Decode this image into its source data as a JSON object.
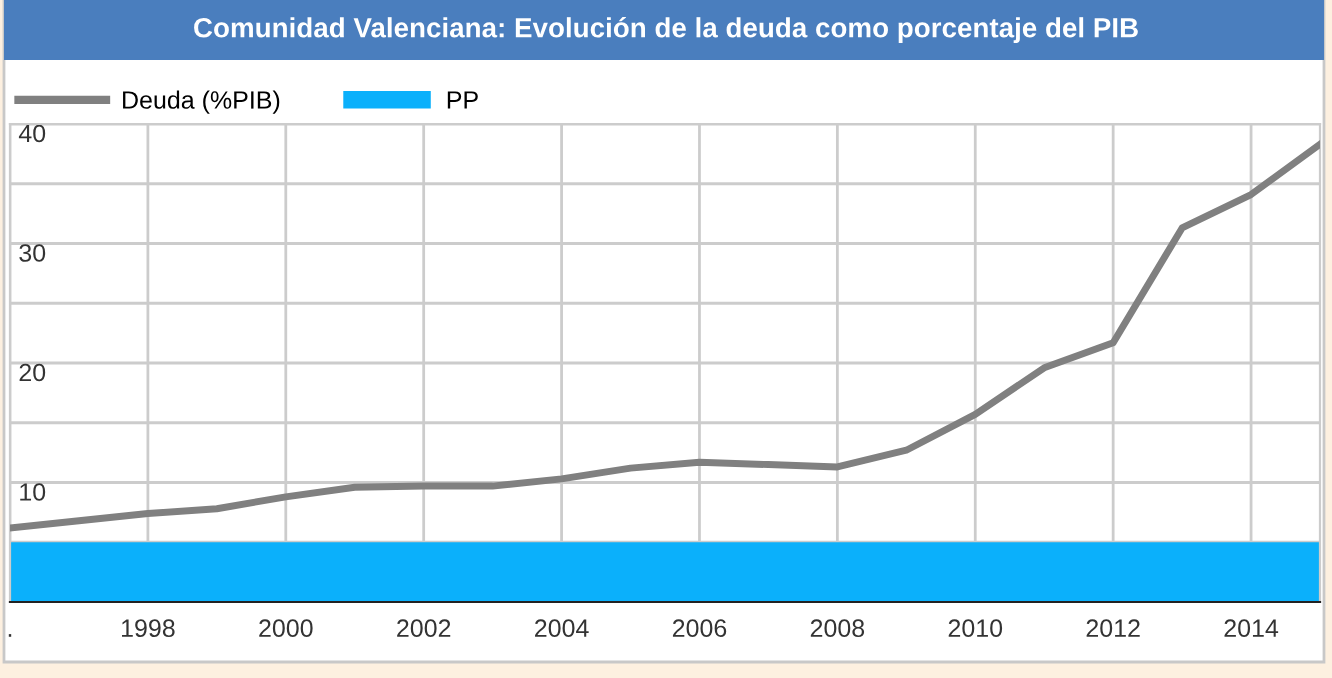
{
  "chart_data": {
    "type": "line",
    "title": "Comunidad Valenciana: Evolución de la deuda como porcentaje del PIB",
    "x": [
      1996,
      1997,
      1998,
      1999,
      2000,
      2001,
      2002,
      2003,
      2004,
      2005,
      2006,
      2007,
      2008,
      2009,
      2010,
      2011,
      2012,
      2013,
      2014,
      2015
    ],
    "series": [
      {
        "name": "Deuda (%PIB)",
        "color": "#808080",
        "values": [
          6.2,
          6.8,
          7.4,
          7.8,
          8.8,
          9.6,
          9.7,
          9.7,
          10.3,
          11.2,
          11.7,
          11.5,
          11.3,
          12.7,
          15.7,
          19.6,
          21.7,
          31.3,
          34.1,
          38.3
        ]
      },
      {
        "name": "PP",
        "type": "area",
        "color": "#0bb0fb",
        "values": [
          5,
          5,
          5,
          5,
          5,
          5,
          5,
          5,
          5,
          5,
          5,
          5,
          5,
          5,
          5,
          5,
          5,
          5,
          5,
          5
        ]
      }
    ],
    "xlim": [
      1996,
      2015
    ],
    "xticks": [
      {
        "value": 1996,
        "label": "."
      },
      1998,
      2000,
      2002,
      2004,
      2006,
      2008,
      2010,
      2012,
      2014
    ],
    "ylim": [
      0,
      40
    ],
    "yticks": [
      {
        "value": 5,
        "label": null
      },
      10,
      {
        "value": 15,
        "label": null
      },
      20,
      {
        "value": 25,
        "label": null
      },
      30,
      {
        "value": 35,
        "label": null
      },
      40
    ],
    "grid": true,
    "legend": "top left",
    "marker": "none",
    "line_style": "solid"
  }
}
